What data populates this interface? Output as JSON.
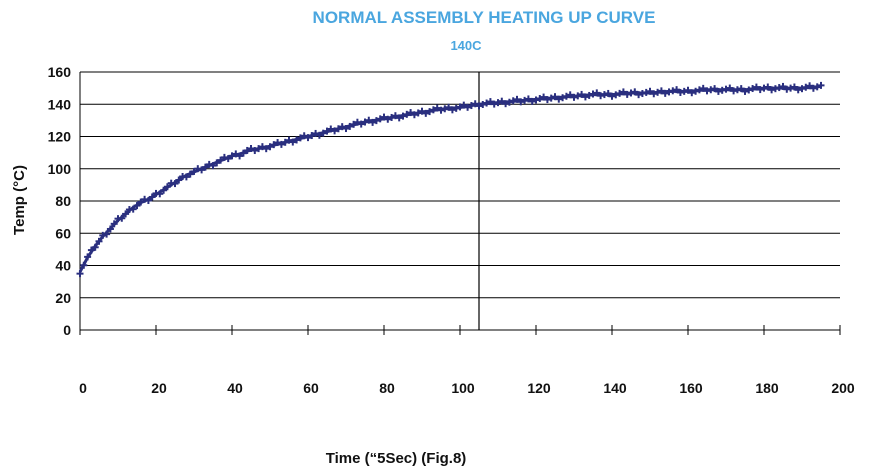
{
  "chart_data": {
    "type": "scatter",
    "title": "NORMAL ASSEMBLY HEATING UP CURVE",
    "subtitle": "140C",
    "xlabel": "Time (“5Sec)  (Fig.8)",
    "ylabel": "Temp (°C)",
    "xlim": [
      0,
      200
    ],
    "ylim": [
      0,
      160
    ],
    "x_ticks": [
      "0",
      "20",
      "40",
      "60",
      "80",
      "100",
      "120",
      "140",
      "160",
      "180",
      "200"
    ],
    "y_ticks": [
      "0",
      "20",
      "40",
      "60",
      "80",
      "100",
      "120",
      "140",
      "160"
    ],
    "grid": "horizontal",
    "reference_line_x": 105,
    "colors": {
      "series": "#2a2f7f",
      "title": "#4aa6df",
      "axis": "#000000"
    },
    "series": [
      {
        "x": [
          0,
          2,
          4,
          6,
          8,
          10,
          12,
          14,
          16,
          18,
          20,
          22,
          24,
          26,
          28,
          30,
          32,
          34,
          36,
          38,
          40,
          42,
          44,
          46,
          48,
          50,
          55,
          60,
          65,
          70,
          75,
          80,
          85,
          90,
          95,
          100,
          105,
          110,
          115,
          120,
          125,
          130,
          135,
          140,
          145,
          150,
          155,
          160,
          165,
          170,
          175,
          180,
          185,
          190,
          195
        ],
        "y": [
          36,
          45,
          52,
          58,
          63,
          68,
          72,
          76,
          79,
          81,
          84,
          87,
          90,
          93,
          96,
          98,
          100,
          102,
          104,
          106,
          108,
          109,
          111,
          112,
          113,
          114,
          117,
          120,
          123,
          126,
          129,
          131,
          133,
          135,
          137,
          138,
          140,
          141,
          142,
          143,
          144,
          145,
          146,
          146,
          147,
          147,
          148,
          148,
          149,
          149,
          149,
          150,
          150,
          150,
          151
        ]
      }
    ]
  }
}
